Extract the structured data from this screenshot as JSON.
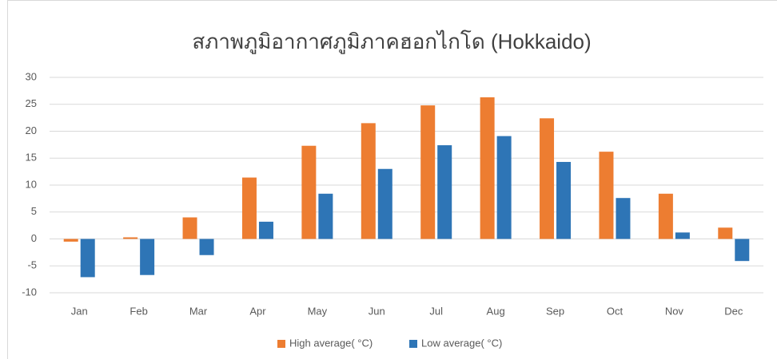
{
  "chart_data": {
    "type": "bar",
    "title": "สภาพภูมิอากาศภูมิภาคฮอกไกโด (Hokkaido)",
    "categories": [
      "Jan",
      "Feb",
      "Mar",
      "Apr",
      "May",
      "Jun",
      "Jul",
      "Aug",
      "Sep",
      "Oct",
      "Nov",
      "Dec"
    ],
    "series": [
      {
        "name": "High average( °C)",
        "color": "#ed7d31",
        "values": [
          -0.5,
          0.3,
          4.0,
          11.4,
          17.3,
          21.5,
          24.8,
          26.3,
          22.4,
          16.2,
          8.4,
          2.1
        ]
      },
      {
        "name": "Low average( °C)",
        "color": "#2e75b6",
        "values": [
          -7.1,
          -6.7,
          -3.0,
          3.2,
          8.4,
          13.0,
          17.4,
          19.1,
          14.3,
          7.6,
          1.2,
          -4.1
        ]
      }
    ],
    "ylim": [
      -10,
      30
    ],
    "yticks": [
      -10,
      -5,
      0,
      5,
      10,
      15,
      20,
      25,
      30
    ],
    "grid": true,
    "legend": "bottom"
  }
}
